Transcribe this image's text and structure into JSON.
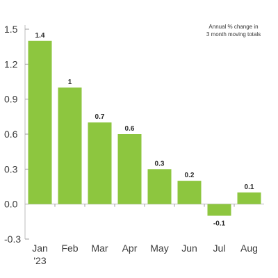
{
  "chart_data": {
    "type": "bar",
    "categories": [
      "Jan",
      "Feb",
      "Mar",
      "Apr",
      "May",
      "Jun",
      "Jul",
      "Aug"
    ],
    "category_sublabels": [
      "'23",
      "",
      "",
      "",
      "",
      "",
      "",
      ""
    ],
    "values": [
      1.4,
      1.0,
      0.7,
      0.6,
      0.3,
      0.2,
      -0.1,
      0.1
    ],
    "data_labels": [
      "1.4",
      "1",
      "0.7",
      "0.6",
      "0.3",
      "0.2",
      "-0.1",
      "0.1"
    ],
    "yticks": [
      -0.3,
      0.0,
      0.3,
      0.6,
      0.9,
      1.2,
      1.5
    ],
    "ytick_labels": [
      "-0.3",
      "0.0",
      "0.3",
      "0.6",
      "0.9",
      "1.2",
      "1.5"
    ],
    "ylim": [
      -0.3,
      1.5
    ],
    "annotation": [
      "Annual % change in",
      "3 month moving totals"
    ],
    "bar_color": "#8dc63f",
    "grid": false,
    "title": "",
    "xlabel": "",
    "ylabel": ""
  }
}
